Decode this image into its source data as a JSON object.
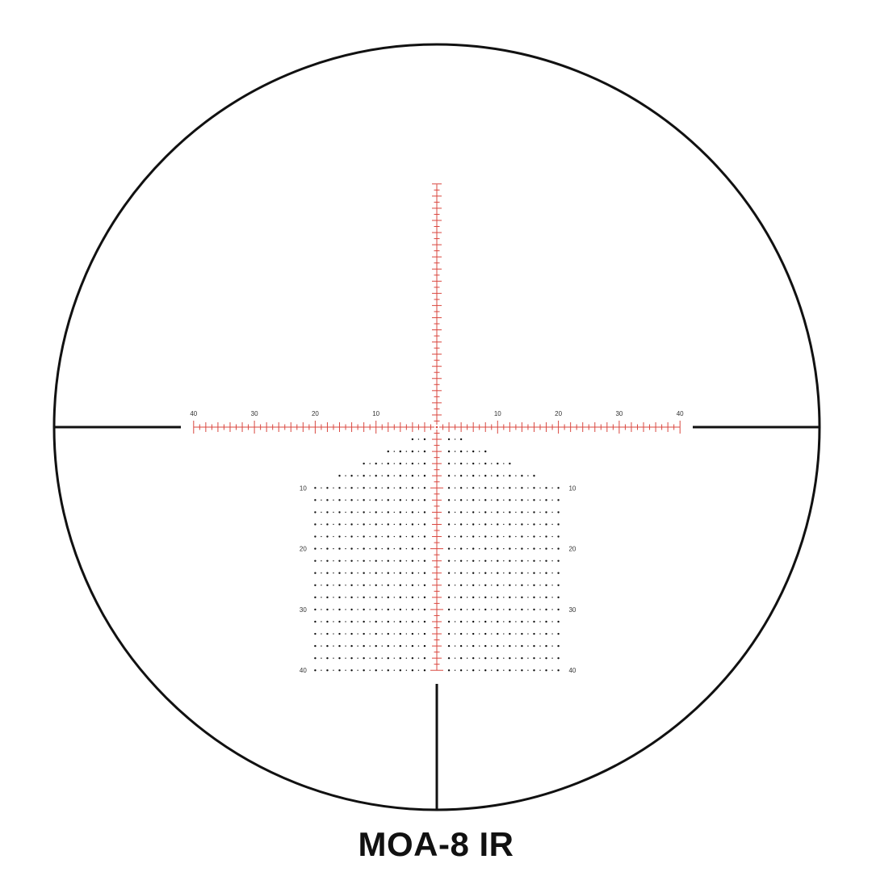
{
  "title": "MOA-8 IR",
  "colors": {
    "reticle_red": "#d9473f",
    "outline": "#111111",
    "dots": "#111111"
  },
  "horizontal_scale": {
    "range": 40,
    "labels": [
      "40",
      "30",
      "20",
      "10",
      "10",
      "20",
      "30",
      "40"
    ],
    "label_values": [
      -40,
      -30,
      -20,
      -10,
      10,
      20,
      30,
      40
    ]
  },
  "vertical_scale": {
    "range_up": 40,
    "range_down": 40
  },
  "holdover_tree": {
    "row_labels_left": [
      "10",
      "20",
      "30",
      "40"
    ],
    "row_labels_right": [
      "10",
      "20",
      "30",
      "40"
    ],
    "row_label_values": [
      10,
      20,
      30,
      40
    ],
    "row_spacing_units": 2,
    "row_half_widths_units": [
      4,
      8,
      12,
      16,
      20,
      20,
      20,
      20,
      20,
      20,
      20,
      20,
      20,
      20,
      20,
      20,
      20,
      20,
      20,
      20
    ]
  }
}
